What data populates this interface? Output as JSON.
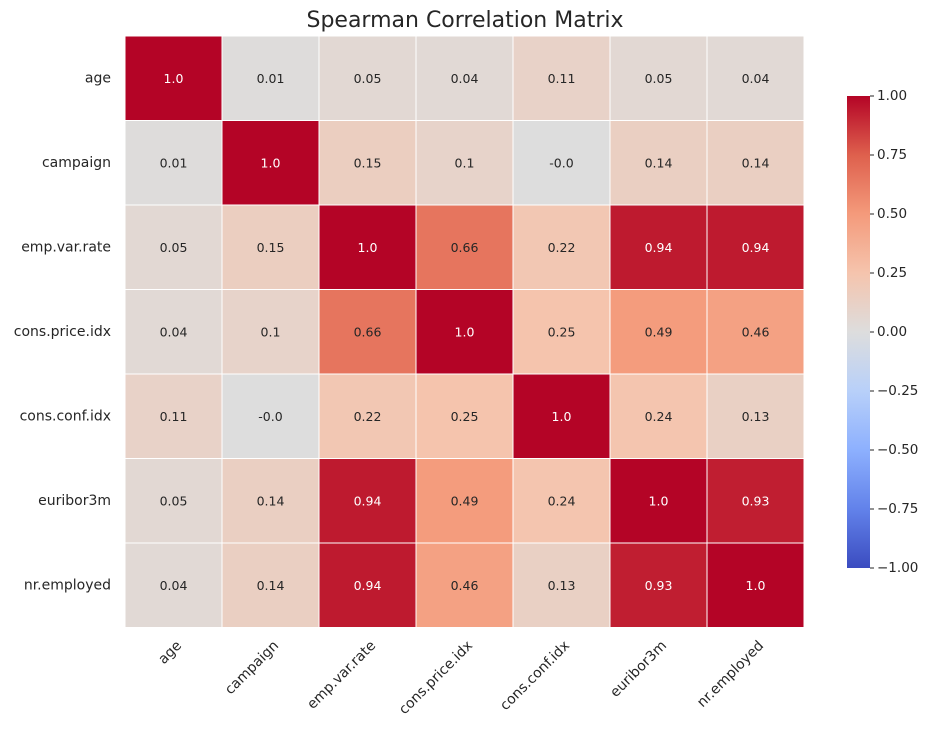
{
  "chart_data": {
    "type": "heatmap",
    "title": "Spearman Correlation Matrix",
    "row_labels": [
      "age",
      "campaign",
      "emp.var.rate",
      "cons.price.idx",
      "cons.conf.idx",
      "euribor3m",
      "nr.employed"
    ],
    "col_labels": [
      "age",
      "campaign",
      "emp.var.rate",
      "cons.price.idx",
      "cons.conf.idx",
      "euribor3m",
      "nr.employed"
    ],
    "values": [
      [
        1.0,
        0.01,
        0.05,
        0.04,
        0.11,
        0.05,
        0.04
      ],
      [
        0.01,
        1.0,
        0.15,
        0.1,
        -0.0,
        0.14,
        0.14
      ],
      [
        0.05,
        0.15,
        1.0,
        0.66,
        0.22,
        0.94,
        0.94
      ],
      [
        0.04,
        0.1,
        0.66,
        1.0,
        0.25,
        0.49,
        0.46
      ],
      [
        0.11,
        -0.0,
        0.22,
        0.25,
        1.0,
        0.24,
        0.13
      ],
      [
        0.05,
        0.14,
        0.94,
        0.49,
        0.24,
        1.0,
        0.93
      ],
      [
        0.04,
        0.14,
        0.94,
        0.46,
        0.13,
        0.93,
        1.0
      ]
    ],
    "value_labels": [
      [
        "1.0",
        "0.01",
        "0.05",
        "0.04",
        "0.11",
        "0.05",
        "0.04"
      ],
      [
        "0.01",
        "1.0",
        "0.15",
        "0.1",
        "-0.0",
        "0.14",
        "0.14"
      ],
      [
        "0.05",
        "0.15",
        "1.0",
        "0.66",
        "0.22",
        "0.94",
        "0.94"
      ],
      [
        "0.04",
        "0.1",
        "0.66",
        "1.0",
        "0.25",
        "0.49",
        "0.46"
      ],
      [
        "0.11",
        "-0.0",
        "0.22",
        "0.25",
        "1.0",
        "0.24",
        "0.13"
      ],
      [
        "0.05",
        "0.14",
        "0.94",
        "0.49",
        "0.24",
        "1.0",
        "0.93"
      ],
      [
        "0.04",
        "0.14",
        "0.94",
        "0.46",
        "0.13",
        "0.93",
        "1.0"
      ]
    ],
    "vmin": -1.0,
    "vmax": 1.0,
    "colormap": "coolwarm",
    "colorbar": {
      "ticks": [
        1.0,
        0.75,
        0.5,
        0.25,
        0.0,
        -0.25,
        -0.5,
        -0.75,
        -1.0
      ],
      "tick_labels": [
        "1.00",
        "0.75",
        "0.50",
        "0.25",
        "0.00",
        "−0.25",
        "−0.50",
        "−0.75",
        "−1.00"
      ],
      "placement": "right"
    },
    "colors": {
      "cold_end": "#3b4cc0",
      "neutral_mid": "#dddddd",
      "warm_end": "#b40426",
      "cell_border": "#ffffff",
      "text_dark": "#262626",
      "text_light": "#ffffff"
    }
  }
}
